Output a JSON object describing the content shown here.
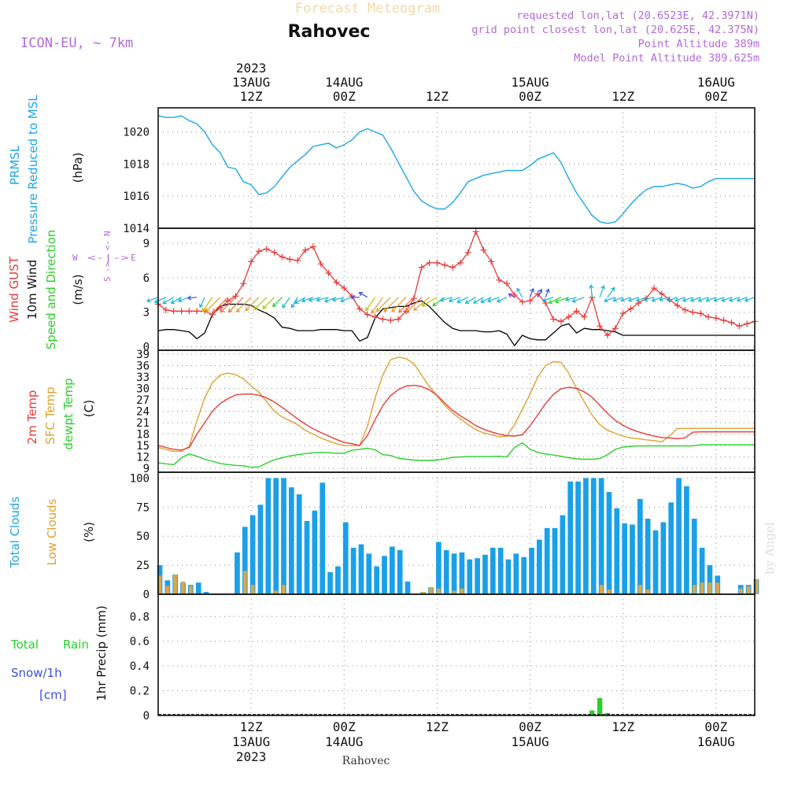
{
  "header": {
    "product_title": "Forecast Meteogram",
    "location": "Rahovec",
    "model": "ICON-EU, ~ 7km",
    "requested": "requested lon,lat (20.6523E, 42.3971N)",
    "grid_point": "grid point closest lon,lat (20.625E, 42.375N)",
    "point_altitude": "Point Altitude 389m",
    "model_point_altitude": "Model Point Altitude 389.625m",
    "footer_location": "Rahovec",
    "watermark": "by Angel"
  },
  "time_axis": {
    "start_hours_before_13aug00z": 0,
    "ticks": [
      {
        "hour": 12,
        "top_lines": [
          "2023",
          "13AUG",
          "12Z"
        ],
        "bottom_lines": [
          "12Z",
          "13AUG",
          "2023"
        ]
      },
      {
        "hour": 24,
        "top_lines": [
          "14AUG",
          "00Z"
        ],
        "bottom_lines": [
          "00Z",
          "14AUG"
        ]
      },
      {
        "hour": 36,
        "top_lines": [
          "12Z"
        ],
        "bottom_lines": [
          "12Z"
        ]
      },
      {
        "hour": 48,
        "top_lines": [
          "15AUG",
          "00Z"
        ],
        "bottom_lines": [
          "00Z",
          "15AUG"
        ]
      },
      {
        "hour": 60,
        "top_lines": [
          "12Z"
        ],
        "bottom_lines": [
          "12Z"
        ]
      },
      {
        "hour": 72,
        "top_lines": [
          "16AUG",
          "00Z"
        ],
        "bottom_lines": [
          "00Z",
          "16AUG"
        ]
      }
    ]
  },
  "chart_data": [
    {
      "type": "line",
      "name": "pressure",
      "labels": [
        "PRMSL",
        "Pressure Reduced to MSL",
        "(hPa)"
      ],
      "ylim": [
        1014,
        1021.5
      ],
      "yticks": [
        1014,
        1016,
        1018,
        1020
      ],
      "grid": true,
      "color": "#1aa7e8",
      "x": [
        0,
        1,
        2,
        3,
        4,
        5,
        6,
        7,
        8,
        9,
        10,
        11,
        12,
        13,
        14,
        15,
        16,
        17,
        18,
        19,
        20,
        21,
        22,
        23,
        24,
        25,
        26,
        27,
        28,
        29,
        30,
        31,
        32,
        33,
        34,
        35,
        36,
        37,
        38,
        39,
        40,
        41,
        42,
        43,
        44,
        45,
        46,
        47,
        48,
        49,
        50,
        51,
        52,
        53,
        54,
        55,
        56,
        57,
        58,
        59,
        60,
        61,
        62,
        63,
        64,
        65,
        66,
        67,
        68,
        69,
        70,
        71,
        72,
        73,
        74,
        75,
        76,
        77
      ],
      "values": [
        1021.0,
        1020.9,
        1020.9,
        1021.0,
        1020.7,
        1020.5,
        1020.0,
        1019.2,
        1018.7,
        1017.8,
        1017.7,
        1016.9,
        1016.7,
        1016.1,
        1016.2,
        1016.6,
        1017.2,
        1017.8,
        1018.2,
        1018.6,
        1019.1,
        1019.2,
        1019.3,
        1019.0,
        1019.2,
        1019.5,
        1020.0,
        1020.2,
        1020.0,
        1019.8,
        1019.0,
        1018.1,
        1017.2,
        1016.3,
        1015.7,
        1015.4,
        1015.2,
        1015.2,
        1015.6,
        1016.2,
        1016.9,
        1017.1,
        1017.3,
        1017.4,
        1017.5,
        1017.6,
        1017.6,
        1017.6,
        1017.9,
        1018.3,
        1018.5,
        1018.7,
        1018.1,
        1017.1,
        1016.2,
        1015.5,
        1014.8,
        1014.4,
        1014.3,
        1014.4,
        1014.9,
        1015.5,
        1016.0,
        1016.4,
        1016.6,
        1016.6,
        1016.7,
        1016.8,
        1016.7,
        1016.5,
        1016.6,
        1016.9,
        1017.1,
        1017.1,
        1017.1,
        1017.1,
        1017.1,
        1017.1
      ]
    },
    {
      "type": "line",
      "name": "wind",
      "labels_gust": "Wind GUST",
      "labels_wind": "10m Wind",
      "labels_speed": "Speed and Direction",
      "unit": "(m/s)",
      "compass": {
        "north": "N",
        "south": "S",
        "west": "W",
        "east": "E"
      },
      "ylim": [
        -0.3,
        10.3
      ],
      "yticks": [
        0,
        3,
        6,
        9
      ],
      "grid": true,
      "gust_color": "#e83a3a",
      "wind_color": "#000000",
      "x": [
        0,
        1,
        2,
        3,
        4,
        5,
        6,
        7,
        8,
        9,
        10,
        11,
        12,
        13,
        14,
        15,
        16,
        17,
        18,
        19,
        20,
        21,
        22,
        23,
        24,
        25,
        26,
        27,
        28,
        29,
        30,
        31,
        32,
        33,
        34,
        35,
        36,
        37,
        38,
        39,
        40,
        41,
        42,
        43,
        44,
        45,
        46,
        47,
        48,
        49,
        50,
        51,
        52,
        53,
        54,
        55,
        56,
        57,
        58,
        59,
        60,
        61,
        62,
        63,
        64,
        65,
        66,
        67,
        68,
        69,
        70,
        71,
        72,
        73,
        74,
        75,
        76,
        77
      ],
      "gust": [
        3.7,
        3.2,
        3.1,
        3.1,
        3.1,
        3.1,
        3.1,
        2.8,
        3.4,
        4.0,
        4.4,
        5.5,
        7.4,
        8.3,
        8.5,
        8.2,
        7.8,
        7.6,
        7.5,
        8.4,
        8.7,
        7.2,
        6.4,
        5.6,
        5.1,
        4.4,
        3.3,
        2.8,
        2.6,
        2.4,
        2.3,
        2.4,
        3.1,
        4.2,
        6.9,
        7.3,
        7.3,
        7.1,
        6.9,
        7.3,
        8.2,
        10.0,
        8.4,
        7.4,
        5.8,
        5.5,
        4.5,
        3.9,
        4.0,
        4.6,
        3.8,
        2.4,
        2.2,
        2.6,
        3.1,
        2.6,
        4.3,
        1.8,
        1.0,
        1.6,
        2.9,
        3.3,
        3.8,
        4.2,
        5.1,
        4.6,
        4.1,
        3.6,
        3.2,
        3.0,
        2.9,
        2.6,
        2.5,
        2.3,
        2.1,
        1.8,
        2.0,
        2.2
      ],
      "wind": [
        1.4,
        1.5,
        1.5,
        1.4,
        1.3,
        0.7,
        1.2,
        2.8,
        3.5,
        3.7,
        3.7,
        3.7,
        3.6,
        3.2,
        2.9,
        2.5,
        1.7,
        1.6,
        1.4,
        1.4,
        1.4,
        1.5,
        1.5,
        1.5,
        1.4,
        1.4,
        0.5,
        0.8,
        2.5,
        3.3,
        3.4,
        3.5,
        3.5,
        3.8,
        4.0,
        3.5,
        2.8,
        2.1,
        1.6,
        1.4,
        1.4,
        1.4,
        1.3,
        1.3,
        1.4,
        1.1,
        0.1,
        1.0,
        0.7,
        0.6,
        0.6,
        1.2,
        1.8,
        2.0,
        1.2,
        1.6,
        1.5,
        1.5,
        1.4,
        1.3,
        1.0,
        1.0,
        1.0,
        1.0,
        1.0,
        1.0,
        1.0,
        1.0,
        1.0,
        1.0,
        1.0,
        1.0,
        1.0,
        1.0,
        1.0,
        1.0,
        1.0,
        1.0
      ],
      "direction_blowing_to_deg": [
        250,
        245,
        240,
        240,
        250,
        265,
        205,
        215,
        225,
        225,
        225,
        225,
        225,
        225,
        225,
        225,
        225,
        215,
        210,
        240,
        250,
        255,
        255,
        250,
        255,
        250,
        270,
        300,
        215,
        215,
        225,
        225,
        225,
        225,
        225,
        230,
        240,
        235,
        255,
        250,
        245,
        240,
        240,
        245,
        250,
        245,
        300,
        330,
        20,
        25,
        20,
        250,
        245,
        250,
        255,
        250,
        355,
        20,
        35,
        250,
        250,
        250,
        250,
        250,
        255,
        250,
        255,
        250,
        250,
        250,
        250,
        250,
        250,
        250,
        250,
        250,
        250,
        250
      ]
    },
    {
      "type": "line",
      "name": "temperature",
      "labels": [
        "2m Temp",
        "SFC Temp",
        "dewpt Temp",
        "(C)"
      ],
      "ylim": [
        8,
        40
      ],
      "yticks": [
        9,
        12,
        15,
        18,
        21,
        24,
        27,
        30,
        33,
        36,
        39
      ],
      "grid": true,
      "colors": {
        "t2m": "#e83a3a",
        "sfc": "#e0a030",
        "dewpt": "#2bcf2b"
      },
      "x": [
        0,
        1,
        2,
        3,
        4,
        5,
        6,
        7,
        8,
        9,
        10,
        11,
        12,
        13,
        14,
        15,
        16,
        17,
        18,
        19,
        20,
        21,
        22,
        23,
        24,
        25,
        26,
        27,
        28,
        29,
        30,
        31,
        32,
        33,
        34,
        35,
        36,
        37,
        38,
        39,
        40,
        41,
        42,
        43,
        44,
        45,
        46,
        47,
        48,
        49,
        50,
        51,
        52,
        53,
        54,
        55,
        56,
        57,
        58,
        59,
        60,
        61,
        62,
        63,
        64,
        65,
        66,
        67,
        68,
        69,
        70,
        71,
        72,
        73,
        74,
        75,
        76,
        77
      ],
      "t2m": [
        15.0,
        14.5,
        14.0,
        13.8,
        14.5,
        18.0,
        21.0,
        24.0,
        26.0,
        27.3,
        28.3,
        28.5,
        28.5,
        28.2,
        27.5,
        26.4,
        25.0,
        23.5,
        22.0,
        20.6,
        19.4,
        18.4,
        17.5,
        16.6,
        15.8,
        15.5,
        15.0,
        17.6,
        21.8,
        25.5,
        28.1,
        29.7,
        30.6,
        30.8,
        30.5,
        29.6,
        28.2,
        26.1,
        24.2,
        22.8,
        21.6,
        20.2,
        19.3,
        18.6,
        18.0,
        17.6,
        17.5,
        17.8,
        20.2,
        23.1,
        26.0,
        28.4,
        29.9,
        30.3,
        30.0,
        29.1,
        27.7,
        25.6,
        23.4,
        21.6,
        20.3,
        19.3,
        18.6,
        18.0,
        17.5,
        17.1,
        17.0,
        16.8,
        17.0,
        18.5,
        18.6,
        18.6,
        18.6,
        18.6,
        18.6,
        18.6,
        18.6,
        18.6
      ],
      "sfc": [
        14.5,
        14.0,
        13.5,
        13.5,
        14.8,
        21.5,
        27.5,
        31.5,
        33.5,
        34.0,
        33.6,
        32.5,
        30.6,
        29.0,
        26.5,
        24.0,
        22.5,
        21.5,
        20.5,
        19.0,
        18.0,
        17.0,
        16.2,
        15.5,
        15.0,
        15.0,
        15.0,
        20.0,
        27.5,
        33.5,
        37.5,
        38.2,
        37.8,
        36.5,
        33.5,
        30.5,
        28.0,
        25.5,
        23.5,
        22.0,
        20.5,
        19.2,
        18.3,
        17.8,
        17.3,
        17.5,
        20.5,
        24.5,
        28.5,
        33.0,
        36.0,
        37.0,
        36.8,
        34.0,
        30.0,
        26.5,
        23.0,
        20.5,
        19.0,
        18.2,
        17.5,
        17.0,
        16.8,
        16.5,
        16.3,
        16.0,
        17.5,
        19.5,
        19.5,
        19.5,
        19.5,
        19.5,
        19.5,
        19.5,
        19.5,
        19.5,
        19.5,
        19.5
      ],
      "dewpt": [
        10.5,
        10.2,
        10.0,
        11.8,
        12.8,
        12.2,
        11.4,
        10.9,
        10.3,
        10.0,
        9.8,
        9.7,
        9.3,
        9.4,
        10.4,
        11.3,
        11.8,
        12.3,
        12.6,
        12.9,
        13.1,
        13.2,
        13.1,
        13.0,
        13.0,
        13.8,
        14.0,
        14.3,
        13.9,
        12.6,
        12.4,
        11.7,
        11.4,
        11.2,
        11.1,
        11.1,
        11.2,
        11.5,
        11.9,
        12.0,
        12.1,
        12.1,
        12.1,
        12.1,
        12.2,
        12.0,
        14.5,
        15.7,
        14.0,
        13.2,
        12.8,
        12.5,
        12.2,
        11.8,
        11.5,
        11.4,
        11.4,
        11.6,
        12.6,
        14.0,
        14.6,
        14.8,
        14.9,
        14.9,
        14.9,
        14.9,
        14.9,
        14.9,
        14.9,
        14.9,
        15.2,
        15.2,
        15.2,
        15.2,
        15.2,
        15.2,
        15.2,
        15.2
      ]
    },
    {
      "type": "bar",
      "name": "clouds",
      "labels": [
        "Total Clouds",
        "Low Clouds",
        "(%)"
      ],
      "ylim": [
        0,
        105
      ],
      "yticks": [
        0,
        25,
        50,
        75,
        100
      ],
      "grid": true,
      "colors": {
        "total": "#1aa0e8",
        "low": "#d8a84a"
      },
      "x": [
        0,
        1,
        2,
        3,
        4,
        5,
        6,
        7,
        8,
        9,
        10,
        11,
        12,
        13,
        14,
        15,
        16,
        17,
        18,
        19,
        20,
        21,
        22,
        23,
        24,
        25,
        26,
        27,
        28,
        29,
        30,
        31,
        32,
        33,
        34,
        35,
        36,
        37,
        38,
        39,
        40,
        41,
        42,
        43,
        44,
        45,
        46,
        47,
        48,
        49,
        50,
        51,
        52,
        53,
        54,
        55,
        56,
        57,
        58,
        59,
        60,
        61,
        62,
        63,
        64,
        65,
        66,
        67,
        68,
        69,
        70,
        71,
        72,
        73,
        74,
        75,
        76,
        77
      ],
      "total": [
        25,
        12,
        17,
        10,
        8,
        10,
        2,
        0,
        0,
        0,
        36,
        58,
        68,
        77,
        100,
        100,
        100,
        92,
        86,
        63,
        72,
        96,
        19,
        24,
        62,
        40,
        43,
        35,
        24,
        33,
        41,
        38,
        11,
        0,
        2,
        6,
        45,
        38,
        35,
        36,
        30,
        31,
        34,
        40,
        40,
        30,
        35,
        32,
        40,
        47,
        57,
        57,
        68,
        97,
        97,
        100,
        100,
        100,
        88,
        74,
        61,
        60,
        82,
        65,
        55,
        62,
        79,
        100,
        93,
        65,
        40,
        25,
        16,
        0,
        0,
        8,
        8,
        13
      ],
      "low": [
        16,
        7,
        17,
        11,
        7,
        0,
        0,
        0,
        0,
        0,
        0,
        20,
        8,
        0,
        0,
        3,
        8,
        0,
        0,
        0,
        0,
        0,
        0,
        0,
        0,
        0,
        0,
        0,
        0,
        0,
        0,
        0,
        0,
        0,
        2,
        6,
        5,
        0,
        3,
        5,
        0,
        0,
        0,
        0,
        0,
        0,
        0,
        0,
        0,
        0,
        0,
        0,
        0,
        0,
        0,
        0,
        0,
        8,
        4,
        0,
        0,
        0,
        8,
        4,
        0,
        0,
        0,
        0,
        0,
        8,
        10,
        10,
        10,
        0,
        0,
        5,
        7,
        13
      ]
    },
    {
      "type": "bar",
      "name": "precipitation",
      "labels_total": "Total",
      "labels_rain": "Rain",
      "labels_snow": "Snow/1h",
      "labels_snow_unit": "[cm]",
      "labels_axis": "1hr Precip (mm)",
      "ylim": [
        0,
        0.98
      ],
      "yticks": [
        0.0,
        0.2,
        0.4,
        0.6,
        0.8
      ],
      "grid": true,
      "colors": {
        "total": "#2bcf2b",
        "rain": "#2bcf2b",
        "snow": "#3a4fe0"
      },
      "x": [
        0,
        1,
        2,
        3,
        4,
        5,
        6,
        7,
        8,
        9,
        10,
        11,
        12,
        13,
        14,
        15,
        16,
        17,
        18,
        19,
        20,
        21,
        22,
        23,
        24,
        25,
        26,
        27,
        28,
        29,
        30,
        31,
        32,
        33,
        34,
        35,
        36,
        37,
        38,
        39,
        40,
        41,
        42,
        43,
        44,
        45,
        46,
        47,
        48,
        49,
        50,
        51,
        52,
        53,
        54,
        55,
        56,
        57,
        58,
        59,
        60,
        61,
        62,
        63,
        64,
        65,
        66,
        67,
        68,
        69,
        70,
        71,
        72,
        73,
        74,
        75,
        76,
        77
      ],
      "values": [
        0,
        0,
        0,
        0,
        0,
        0,
        0,
        0,
        0,
        0,
        0,
        0,
        0,
        0,
        0,
        0,
        0,
        0,
        0,
        0,
        0,
        0,
        0,
        0,
        0,
        0,
        0,
        0,
        0,
        0,
        0,
        0,
        0,
        0,
        0,
        0,
        0,
        0,
        0,
        0,
        0,
        0,
        0,
        0,
        0,
        0,
        0,
        0,
        0,
        0,
        0,
        0,
        0,
        0,
        0,
        0,
        0.04,
        0.14,
        0.02,
        0,
        0,
        0,
        0,
        0,
        0,
        0,
        0,
        0,
        0,
        0,
        0,
        0,
        0,
        0,
        0,
        0,
        0,
        0
      ]
    }
  ]
}
